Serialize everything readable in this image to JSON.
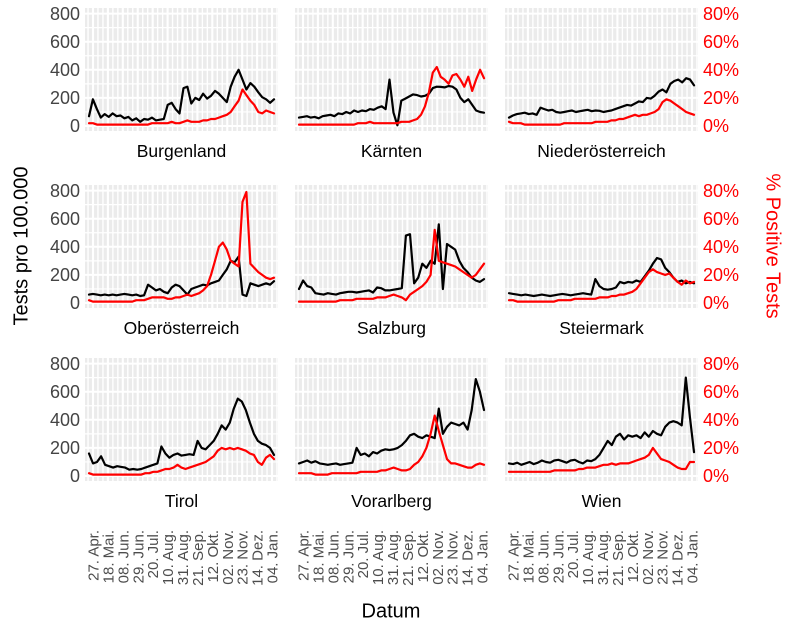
{
  "chart_data": {
    "type": "line",
    "xlabel": "Datum",
    "left_axis": {
      "label": "Tests pro 100.000",
      "tick_labels": [
        "800",
        "600",
        "400",
        "200",
        "0"
      ],
      "tick_values": [
        800,
        600,
        400,
        200,
        0
      ],
      "range": [
        0,
        800
      ]
    },
    "right_axis": {
      "label": "% Positive Tests",
      "tick_labels": [
        "80%",
        "60%",
        "40%",
        "20%",
        "0%"
      ],
      "tick_values": [
        80,
        60,
        40,
        20,
        0
      ],
      "range": [
        0,
        80
      ]
    },
    "x_tick_labels": [
      "27. Apr.",
      "18. Mai.",
      "08. Jun.",
      "29. Jun.",
      "20. Jul.",
      "10. Aug.",
      "31. Aug.",
      "21. Sep.",
      "12. Okt.",
      "02. Nov.",
      "23. Nov.",
      "14. Dez.",
      "04. Jan."
    ],
    "series_meta": [
      {
        "name": "Tests pro 100.000",
        "color": "#000000",
        "axis": "left"
      },
      {
        "name": "% Positive Tests",
        "color": "#ff0000",
        "axis": "right"
      }
    ],
    "layout": {
      "grid": "3x3 facets",
      "panel_background": "#ebebeb",
      "grid_line_color": "#ffffff",
      "tick_text_color": "#4d4d4d",
      "legend": "none"
    },
    "facets": [
      {
        "name": "Burgenland",
        "tests": [
          70,
          190,
          120,
          60,
          85,
          65,
          90,
          70,
          75,
          55,
          65,
          40,
          55,
          30,
          50,
          45,
          60,
          40,
          45,
          50,
          150,
          165,
          120,
          90,
          270,
          280,
          160,
          200,
          185,
          230,
          195,
          215,
          250,
          230,
          200,
          170,
          280,
          350,
          400,
          330,
          260,
          305,
          280,
          240,
          205,
          190,
          165,
          190
        ],
        "positive_pct": [
          2,
          2,
          1,
          1,
          1,
          1,
          1,
          1,
          1,
          1,
          1,
          1,
          1,
          1,
          1,
          1,
          2,
          2,
          2,
          2,
          2,
          3,
          2,
          2,
          3,
          4,
          3,
          3,
          3,
          4,
          4,
          5,
          5,
          6,
          7,
          8,
          10,
          14,
          18,
          26,
          22,
          18,
          15,
          10,
          9,
          11,
          10,
          9
        ]
      },
      {
        "name": "Kärnten",
        "tests": [
          60,
          65,
          70,
          60,
          65,
          55,
          70,
          75,
          80,
          70,
          90,
          85,
          100,
          90,
          110,
          100,
          110,
          105,
          120,
          115,
          130,
          140,
          120,
          330,
          95,
          5,
          180,
          195,
          210,
          225,
          220,
          210,
          215,
          230,
          270,
          280,
          278,
          275,
          285,
          280,
          260,
          200,
          170,
          190,
          150,
          110,
          100,
          95
        ],
        "positive_pct": [
          1,
          1,
          1,
          1,
          1,
          1,
          1,
          1,
          1,
          1,
          1,
          1,
          1,
          1,
          1,
          2,
          2,
          2,
          3,
          2,
          2,
          2,
          2,
          2,
          2,
          2,
          3,
          3,
          3,
          4,
          5,
          8,
          14,
          24,
          38,
          42,
          35,
          33,
          30,
          36,
          37,
          33,
          28,
          35,
          25,
          33,
          40,
          34
        ]
      },
      {
        "name": "Niederösterreich",
        "tests": [
          60,
          75,
          85,
          90,
          95,
          85,
          90,
          80,
          130,
          120,
          110,
          115,
          100,
          95,
          100,
          105,
          110,
          100,
          105,
          110,
          115,
          105,
          110,
          108,
          100,
          105,
          110,
          120,
          130,
          140,
          150,
          145,
          160,
          175,
          170,
          200,
          195,
          215,
          245,
          260,
          240,
          300,
          320,
          330,
          310,
          340,
          330,
          290
        ],
        "positive_pct": [
          3,
          2,
          2,
          2,
          1,
          1,
          1,
          1,
          1,
          1,
          1,
          1,
          1,
          1,
          2,
          2,
          2,
          2,
          2,
          2,
          2,
          2,
          3,
          3,
          3,
          3,
          4,
          4,
          5,
          5,
          6,
          7,
          8,
          7,
          8,
          8,
          9,
          10,
          12,
          17,
          19,
          18,
          16,
          14,
          12,
          10,
          9,
          8
        ]
      },
      {
        "name": "Oberösterreich",
        "tests": [
          60,
          65,
          60,
          55,
          60,
          55,
          60,
          55,
          60,
          65,
          60,
          55,
          60,
          50,
          55,
          130,
          110,
          90,
          100,
          80,
          70,
          110,
          130,
          120,
          90,
          60,
          100,
          110,
          120,
          130,
          125,
          140,
          150,
          160,
          200,
          240,
          300,
          290,
          330,
          60,
          50,
          140,
          130,
          120,
          130,
          140,
          130,
          155
        ],
        "positive_pct": [
          2,
          1,
          1,
          1,
          1,
          1,
          1,
          1,
          1,
          1,
          1,
          1,
          2,
          2,
          2,
          3,
          4,
          4,
          4,
          4,
          3,
          3,
          4,
          4,
          5,
          6,
          5,
          6,
          7,
          9,
          12,
          20,
          30,
          40,
          43,
          38,
          30,
          28,
          26,
          72,
          79,
          28,
          25,
          22,
          20,
          18,
          17,
          18
        ]
      },
      {
        "name": "Salzburg",
        "tests": [
          100,
          160,
          120,
          110,
          70,
          65,
          60,
          70,
          65,
          60,
          70,
          75,
          80,
          80,
          75,
          80,
          85,
          90,
          75,
          110,
          105,
          90,
          90,
          95,
          100,
          105,
          480,
          490,
          140,
          180,
          280,
          250,
          300,
          280,
          560,
          100,
          420,
          400,
          380,
          300,
          250,
          220,
          180,
          160,
          150,
          170
        ],
        "positive_pct": [
          1,
          1,
          1,
          1,
          1,
          1,
          1,
          1,
          1,
          1,
          2,
          2,
          2,
          2,
          3,
          3,
          3,
          3,
          3,
          4,
          4,
          4,
          5,
          6,
          5,
          4,
          2,
          6,
          8,
          10,
          12,
          15,
          20,
          52,
          30,
          29,
          28,
          27,
          26,
          24,
          22,
          20,
          18,
          20,
          24,
          28
        ]
      },
      {
        "name": "Steiermark",
        "tests": [
          70,
          65,
          60,
          55,
          60,
          55,
          50,
          55,
          60,
          55,
          50,
          55,
          60,
          65,
          60,
          55,
          60,
          65,
          70,
          65,
          60,
          170,
          120,
          100,
          95,
          100,
          110,
          150,
          140,
          150,
          145,
          160,
          150,
          190,
          230,
          280,
          320,
          310,
          250,
          220,
          180,
          150,
          160,
          140,
          150,
          140
        ],
        "positive_pct": [
          2,
          2,
          1,
          1,
          1,
          1,
          1,
          1,
          1,
          1,
          1,
          1,
          2,
          2,
          2,
          2,
          3,
          3,
          3,
          3,
          3,
          3,
          4,
          4,
          4,
          5,
          5,
          6,
          6,
          7,
          8,
          10,
          14,
          18,
          22,
          24,
          22,
          21,
          20,
          21,
          18,
          15,
          13,
          16,
          14,
          15
        ]
      },
      {
        "name": "Tirol",
        "tests": [
          160,
          90,
          100,
          140,
          80,
          70,
          60,
          70,
          65,
          60,
          45,
          50,
          45,
          50,
          60,
          70,
          80,
          90,
          210,
          160,
          130,
          150,
          160,
          145,
          150,
          155,
          150,
          250,
          200,
          190,
          220,
          250,
          300,
          360,
          330,
          380,
          480,
          550,
          530,
          470,
          380,
          300,
          250,
          230,
          220,
          200,
          150
        ],
        "positive_pct": [
          2,
          1,
          1,
          1,
          1,
          1,
          1,
          1,
          1,
          1,
          1,
          1,
          1,
          1,
          2,
          2,
          3,
          3,
          4,
          5,
          5,
          6,
          8,
          6,
          5,
          6,
          7,
          8,
          9,
          10,
          12,
          14,
          18,
          20,
          19,
          20,
          19,
          20,
          19,
          18,
          16,
          15,
          10,
          8,
          13,
          15,
          12
        ]
      },
      {
        "name": "Vorarlberg",
        "tests": [
          90,
          100,
          110,
          95,
          105,
          90,
          85,
          80,
          85,
          90,
          80,
          85,
          90,
          95,
          200,
          150,
          160,
          140,
          170,
          160,
          180,
          190,
          185,
          190,
          200,
          220,
          250,
          290,
          300,
          280,
          270,
          290,
          280,
          270,
          480,
          300,
          350,
          380,
          370,
          360,
          380,
          330,
          470,
          690,
          600,
          470
        ],
        "positive_pct": [
          2,
          2,
          2,
          2,
          1,
          1,
          1,
          1,
          2,
          2,
          2,
          2,
          2,
          2,
          2,
          3,
          3,
          3,
          3,
          3,
          4,
          4,
          5,
          6,
          5,
          4,
          4,
          5,
          8,
          10,
          14,
          20,
          30,
          43,
          32,
          22,
          12,
          9,
          9,
          8,
          7,
          6,
          6,
          8,
          9,
          8
        ]
      },
      {
        "name": "Wien",
        "tests": [
          90,
          85,
          95,
          80,
          90,
          100,
          85,
          95,
          110,
          100,
          95,
          110,
          115,
          105,
          95,
          110,
          115,
          100,
          90,
          110,
          105,
          120,
          150,
          200,
          250,
          220,
          280,
          300,
          260,
          290,
          280,
          290,
          270,
          310,
          280,
          320,
          300,
          290,
          350,
          380,
          390,
          380,
          360,
          700,
          420,
          170
        ],
        "positive_pct": [
          3,
          3,
          3,
          3,
          3,
          3,
          3,
          3,
          3,
          3,
          3,
          4,
          4,
          4,
          4,
          4,
          4,
          5,
          5,
          6,
          6,
          6,
          7,
          8,
          8,
          9,
          8,
          9,
          9,
          9,
          10,
          11,
          12,
          13,
          15,
          20,
          16,
          12,
          11,
          10,
          8,
          6,
          5,
          5,
          10,
          10
        ]
      }
    ]
  }
}
